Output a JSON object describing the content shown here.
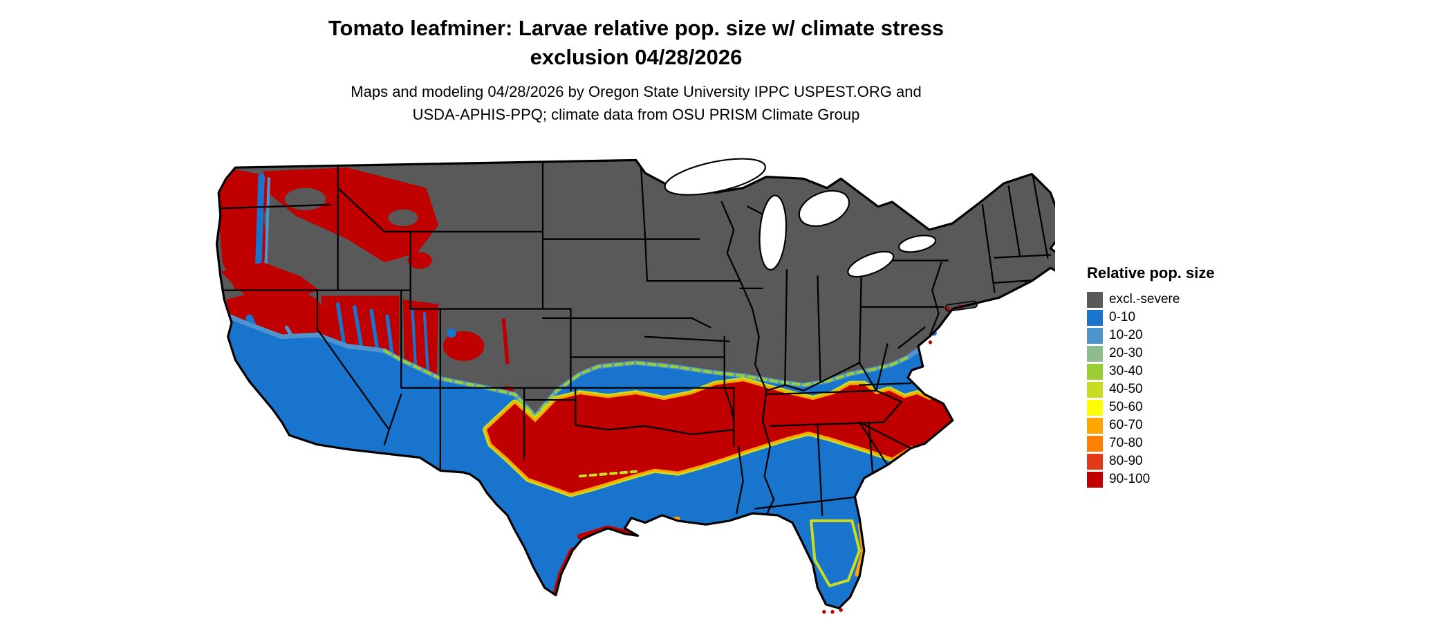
{
  "title": {
    "line1": "Tomato leafminer: Larvae relative pop. size w/ climate stress",
    "line2": "exclusion 04/28/2026"
  },
  "subtitle": {
    "line1": "Maps and modeling 04/28/2026 by Oregon State University IPPC USPEST.ORG and",
    "line2": "USDA-APHIS-PPQ; climate data from OSU PRISM Climate Group"
  },
  "legend": {
    "title": "Relative pop. size",
    "items": [
      {
        "label": "excl.-severe",
        "color": "#595959"
      },
      {
        "label": "0-10",
        "color": "#1874CD"
      },
      {
        "label": "10-20",
        "color": "#4F94CD"
      },
      {
        "label": "20-30",
        "color": "#8FBC8F"
      },
      {
        "label": "30-40",
        "color": "#9ACD32"
      },
      {
        "label": "40-50",
        "color": "#C7DD23"
      },
      {
        "label": "50-60",
        "color": "#FFFF00"
      },
      {
        "label": "60-70",
        "color": "#FFA500"
      },
      {
        "label": "70-80",
        "color": "#FF7F00"
      },
      {
        "label": "80-90",
        "color": "#E03A1A"
      },
      {
        "label": "90-100",
        "color": "#C00000"
      }
    ]
  }
}
